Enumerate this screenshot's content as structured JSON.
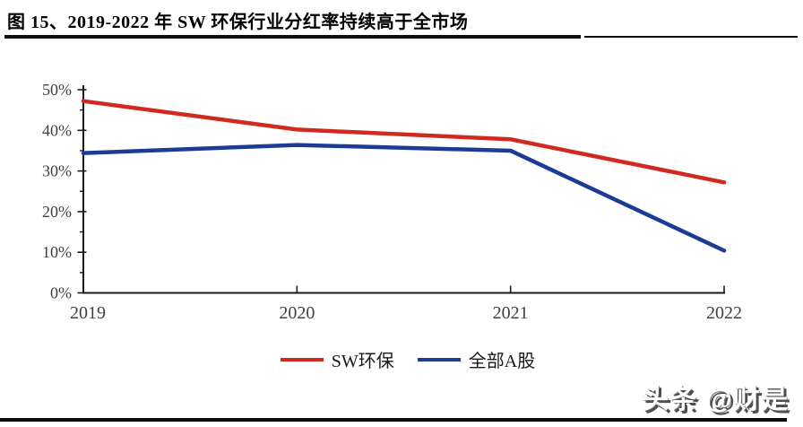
{
  "figure": {
    "title": "图 15、2019-2022 年 SW 环保行业分红率持续高于全市场"
  },
  "watermark": {
    "text": "头条 @财是"
  },
  "chart_data": {
    "type": "line",
    "categories": [
      "2019",
      "2020",
      "2021",
      "2022"
    ],
    "series": [
      {
        "name": "SW环保",
        "color": "#d02a20",
        "values": [
          47.2,
          40.2,
          37.8,
          27.2
        ]
      },
      {
        "name": "全部A股",
        "color": "#1c3b94",
        "values": [
          34.4,
          36.4,
          35.0,
          10.4
        ]
      }
    ],
    "title": "",
    "xlabel": "",
    "ylabel": "",
    "ylim": [
      0,
      50
    ],
    "y_major_step": 10,
    "y_minor_step": 5,
    "y_tick_labels": [
      "0%",
      "10%",
      "20%",
      "30%",
      "40%",
      "50%"
    ],
    "grid": false,
    "legend_position": "bottom",
    "axis_color": "#1a1a1a",
    "tick_label_color": "#3e4044"
  }
}
